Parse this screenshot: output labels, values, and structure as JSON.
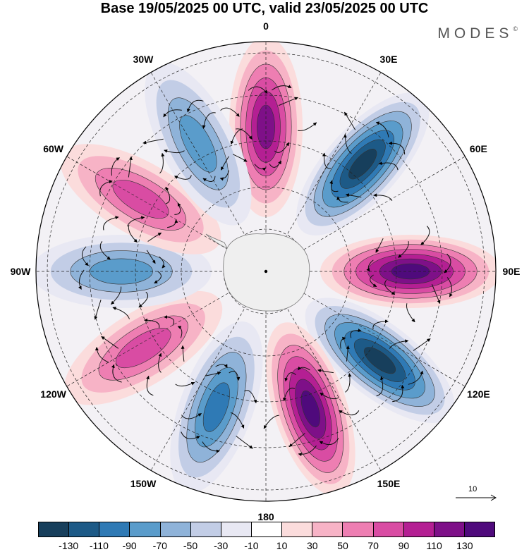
{
  "title": "Base 19/05/2025 00 UTC, valid 23/05/2025 00 UTC",
  "brand": "MODES",
  "brand_mark": "©",
  "longitude_labels": [
    {
      "text": "0",
      "lon": 0
    },
    {
      "text": "30E",
      "lon": 30
    },
    {
      "text": "60E",
      "lon": 60
    },
    {
      "text": "90E",
      "lon": 90
    },
    {
      "text": "120E",
      "lon": 120
    },
    {
      "text": "150E",
      "lon": 150
    },
    {
      "text": "180",
      "lon": 180
    },
    {
      "text": "150W",
      "lon": -150
    },
    {
      "text": "120W",
      "lon": -120
    },
    {
      "text": "90W",
      "lon": -90
    },
    {
      "text": "60W",
      "lon": -60
    },
    {
      "text": "30W",
      "lon": -30
    }
  ],
  "reference_vector": "10",
  "colorbar": {
    "colors": [
      "#173f5c",
      "#1d5a87",
      "#2f7ab5",
      "#5a9ccb",
      "#8fb3d9",
      "#c2cde6",
      "#e8e8f3",
      "#ffffff",
      "#fbdcdc",
      "#f7b3c6",
      "#ee7eb2",
      "#d94ca3",
      "#b41f93",
      "#7e1088",
      "#4f0a7c"
    ],
    "tick_labels": [
      "-130",
      "-110",
      "-90",
      "-70",
      "-50",
      "-30",
      "-10",
      "10",
      "30",
      "50",
      "70",
      "90",
      "110",
      "130"
    ]
  },
  "anomaly_lobes": [
    {
      "lon": 0,
      "value": 110
    },
    {
      "lon": 42,
      "value": -130
    },
    {
      "lon": 90,
      "value": 130
    },
    {
      "lon": 128,
      "value": -130
    },
    {
      "lon": 162,
      "value": 130
    },
    {
      "lon": -160,
      "value": -90
    },
    {
      "lon": -122,
      "value": 70
    },
    {
      "lon": -90,
      "value": -70
    },
    {
      "lon": -60,
      "value": 70
    },
    {
      "lon": -28,
      "value": -70
    }
  ]
}
